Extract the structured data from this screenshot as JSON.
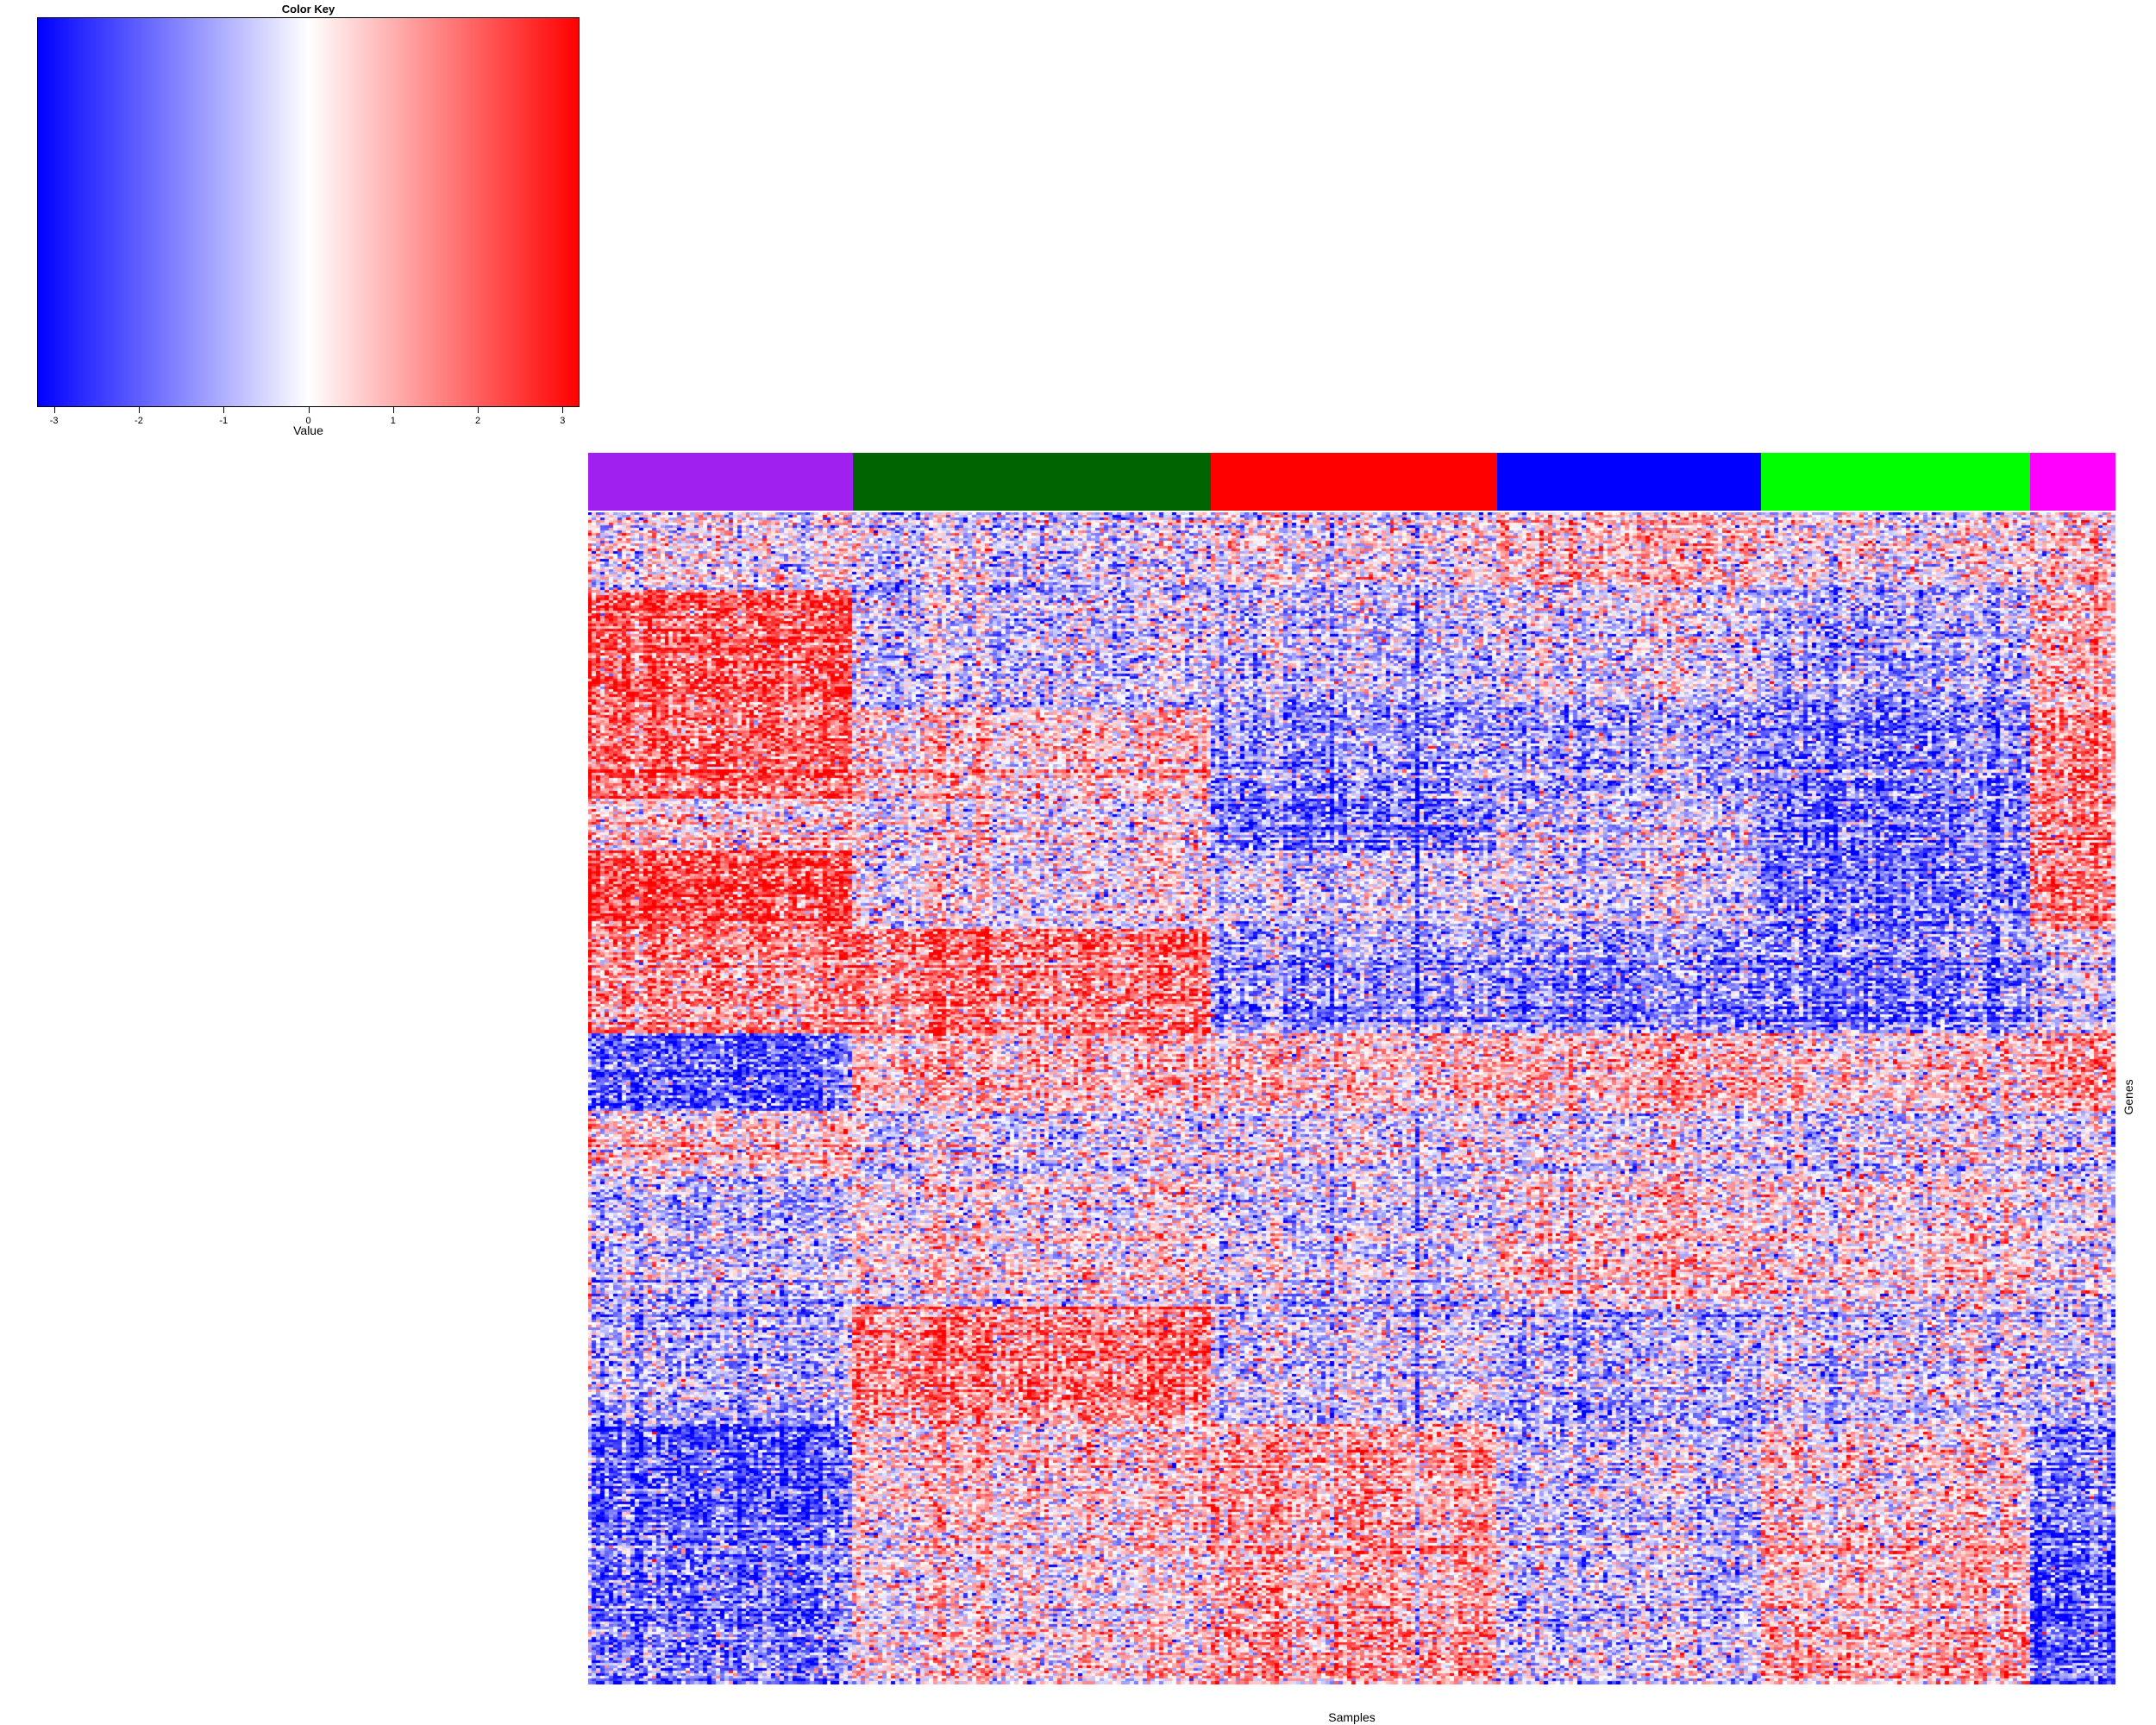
{
  "chart_data": {
    "type": "heatmap",
    "title": "",
    "xlabel": "Samples",
    "ylabel": "Genes",
    "color_key": {
      "title": "Color Key",
      "label": "Value",
      "ticks": [
        -3,
        -2,
        -1,
        0,
        1,
        2,
        3
      ],
      "tick_labels": [
        "-3",
        "-2",
        "-1",
        "0",
        "1",
        "2",
        "3"
      ],
      "range": [
        -3.2,
        3.2
      ],
      "low_color": "#0000ff",
      "mid_color": "#ffffff",
      "high_color": "#ff0000"
    },
    "sample_groups": [
      {
        "color": "#a020f0",
        "n_samples": 62
      },
      {
        "color": "#006400",
        "n_samples": 84
      },
      {
        "color": "#ff0000",
        "n_samples": 67
      },
      {
        "color": "#0000ff",
        "n_samples": 62
      },
      {
        "color": "#00ff00",
        "n_samples": 63
      },
      {
        "color": "#ff00ff",
        "n_samples": 20
      }
    ],
    "gene_blocks": [
      {
        "genes": 30,
        "means": [
          0.0,
          -0.2,
          0.0,
          0.4,
          0.0,
          0.4
        ]
      },
      {
        "genes": 45,
        "means": [
          1.2,
          -0.3,
          -0.4,
          -0.2,
          -0.6,
          0.6
        ]
      },
      {
        "genes": 35,
        "means": [
          1.0,
          0.3,
          -0.8,
          -0.7,
          -1.0,
          0.8
        ]
      },
      {
        "genes": 20,
        "means": [
          0.3,
          0.1,
          -0.9,
          -0.3,
          -0.9,
          1.0
        ]
      },
      {
        "genes": 30,
        "means": [
          1.3,
          0.0,
          -0.3,
          -0.3,
          -1.0,
          0.9
        ]
      },
      {
        "genes": 40,
        "means": [
          0.8,
          1.0,
          -0.7,
          -0.8,
          -0.9,
          -0.2
        ]
      },
      {
        "genes": 30,
        "means": [
          -1.2,
          0.5,
          0.4,
          0.5,
          0.3,
          0.8
        ]
      },
      {
        "genes": 25,
        "means": [
          0.3,
          -0.1,
          -0.1,
          -0.1,
          -0.1,
          -0.1
        ]
      },
      {
        "genes": 50,
        "means": [
          -0.4,
          0.2,
          -0.2,
          0.3,
          0.2,
          0.0
        ]
      },
      {
        "genes": 45,
        "means": [
          -0.6,
          0.9,
          -0.3,
          -0.6,
          -0.3,
          -0.3
        ]
      },
      {
        "genes": 40,
        "means": [
          -1.3,
          0.3,
          0.6,
          -0.4,
          0.2,
          -0.9
        ]
      },
      {
        "genes": 60,
        "means": [
          -1.0,
          0.2,
          0.6,
          -0.3,
          0.5,
          -1.2
        ]
      }
    ]
  }
}
